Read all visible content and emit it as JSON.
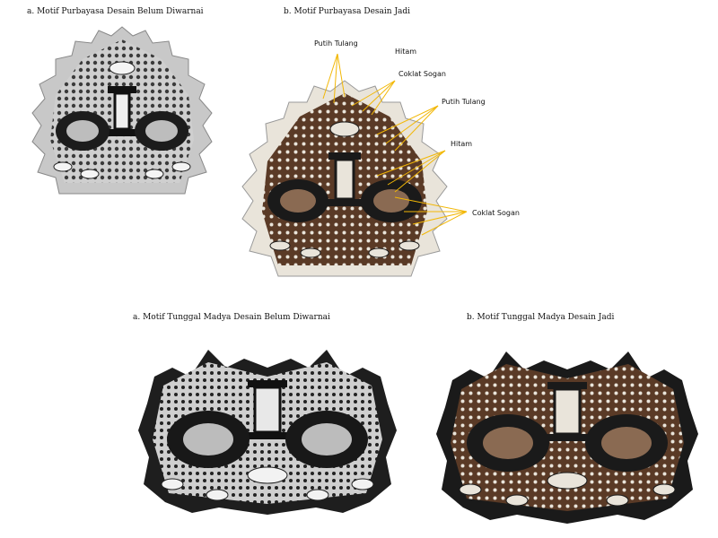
{
  "captions": {
    "top_left": "a.  Motif Purbayasa Desain Belum Diwarnai",
    "top_right": "b.  Motif Purbayasa Desain Jadi",
    "bottom_left": "a.  Motif Tunggal Madya Desain Belum Diwarnai",
    "bottom_right": "b.  Motif Tunggal Madya Desain Jadi"
  },
  "color_labels": [
    "Putih Tulang",
    "Hitam",
    "Coklat Sogan",
    "Putih Tulang",
    "Hitam",
    "Coklat Sogan"
  ],
  "colors": {
    "leader_line": "#f2b705",
    "hitam": "#1a1a1a",
    "coklat_sogan": "#5a3a26",
    "putih_tulang": "#e9e4da",
    "uncolored_light": "#c9c9c9"
  }
}
